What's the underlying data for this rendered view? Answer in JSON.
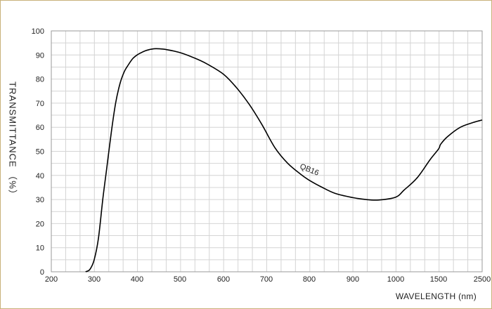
{
  "chart_data": {
    "type": "line",
    "title": "",
    "xlabel": "WAVELENGTH (nm)",
    "ylabel": "TRANSMITTANCE （%）",
    "x_ticks": [
      "200",
      "300",
      "400",
      "500",
      "600",
      "700",
      "800",
      "900",
      "1000",
      "1500",
      "2500"
    ],
    "y_ticks": [
      "0",
      "10",
      "20",
      "30",
      "40",
      "50",
      "60",
      "70",
      "80",
      "90",
      "100"
    ],
    "ylim": [
      0,
      100
    ],
    "grid": true,
    "series": [
      {
        "name": "QB16",
        "color": "#000000",
        "points": [
          [
            280,
            0
          ],
          [
            290,
            1
          ],
          [
            300,
            5
          ],
          [
            310,
            14
          ],
          [
            320,
            30
          ],
          [
            330,
            44
          ],
          [
            340,
            58
          ],
          [
            350,
            70
          ],
          [
            360,
            78
          ],
          [
            370,
            83
          ],
          [
            380,
            86
          ],
          [
            390,
            88.5
          ],
          [
            400,
            90
          ],
          [
            410,
            91
          ],
          [
            420,
            91.8
          ],
          [
            430,
            92.3
          ],
          [
            440,
            92.6
          ],
          [
            450,
            92.6
          ],
          [
            470,
            92.2
          ],
          [
            500,
            91
          ],
          [
            530,
            89
          ],
          [
            560,
            86.5
          ],
          [
            600,
            82
          ],
          [
            630,
            76.5
          ],
          [
            660,
            69.5
          ],
          [
            690,
            61
          ],
          [
            720,
            51.5
          ],
          [
            750,
            45
          ],
          [
            780,
            40.5
          ],
          [
            800,
            38
          ],
          [
            830,
            35
          ],
          [
            860,
            32.5
          ],
          [
            900,
            30.8
          ],
          [
            930,
            30
          ],
          [
            960,
            29.8
          ],
          [
            1000,
            31
          ],
          [
            1100,
            34
          ],
          [
            1250,
            39
          ],
          [
            1400,
            46.5
          ],
          [
            1500,
            51
          ],
          [
            1550,
            53
          ],
          [
            1700,
            56
          ],
          [
            2000,
            60
          ],
          [
            2300,
            62
          ],
          [
            2500,
            63
          ]
        ]
      }
    ]
  }
}
